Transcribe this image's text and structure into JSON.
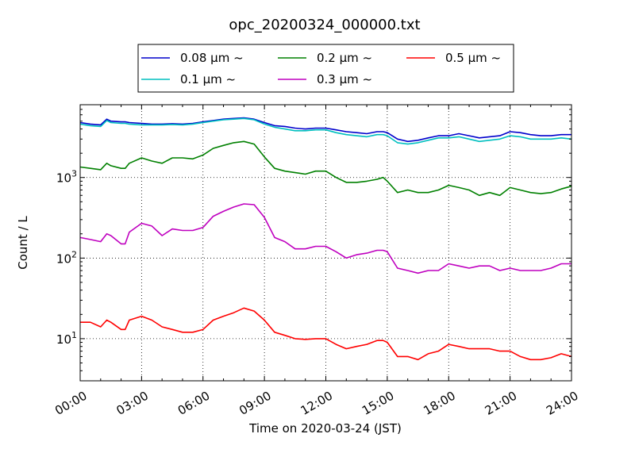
{
  "chart_data": {
    "type": "line",
    "title": "opc_20200324_000000.txt",
    "xlabel": "Time on 2020-03-24 (JST)",
    "ylabel": "Count / L",
    "yscale": "log",
    "xlim": [
      0,
      24
    ],
    "ylim": [
      3,
      8000
    ],
    "grid": true,
    "legend_position": "top-center",
    "x_ticks": [
      "00:00",
      "03:00",
      "06:00",
      "09:00",
      "12:00",
      "15:00",
      "18:00",
      "21:00",
      "24:00"
    ],
    "y_ticks": [
      {
        "value": 10,
        "base": "10",
        "exp": "1"
      },
      {
        "value": 100,
        "base": "10",
        "exp": "2"
      },
      {
        "value": 1000,
        "base": "10",
        "exp": "3"
      }
    ],
    "x_hours": [
      0,
      0.5,
      1,
      1.3,
      1.5,
      2,
      2.2,
      2.4,
      3,
      3.5,
      4,
      4.5,
      5,
      5.5,
      6,
      6.5,
      7,
      7.5,
      8,
      8.5,
      9,
      9.5,
      10,
      10.5,
      11,
      11.5,
      12,
      12.5,
      13,
      13.5,
      14,
      14.5,
      14.8,
      15,
      15.5,
      16,
      16.5,
      17,
      17.5,
      18,
      18.5,
      19,
      19.5,
      20,
      20.5,
      21,
      21.5,
      22,
      22.5,
      23,
      23.5,
      24
    ],
    "series": [
      {
        "name": "0.08 μm ~",
        "color": "#0000cc",
        "values": [
          4800,
          4600,
          4500,
          5300,
          5000,
          4900,
          4900,
          4800,
          4700,
          4600,
          4600,
          4650,
          4600,
          4700,
          4900,
          5100,
          5300,
          5400,
          5500,
          5300,
          4800,
          4400,
          4300,
          4100,
          4000,
          4100,
          4100,
          3900,
          3700,
          3600,
          3500,
          3700,
          3700,
          3600,
          3000,
          2800,
          2900,
          3100,
          3300,
          3300,
          3500,
          3300,
          3100,
          3200,
          3300,
          3700,
          3600,
          3400,
          3300,
          3300,
          3400,
          3400
        ]
      },
      {
        "name": "0.1 μm ~",
        "color": "#00bfbf",
        "values": [
          4600,
          4400,
          4300,
          5100,
          4800,
          4700,
          4700,
          4600,
          4500,
          4500,
          4500,
          4550,
          4500,
          4600,
          4800,
          5000,
          5200,
          5300,
          5400,
          5200,
          4600,
          4200,
          4000,
          3800,
          3800,
          3900,
          3900,
          3600,
          3400,
          3300,
          3200,
          3400,
          3400,
          3300,
          2700,
          2600,
          2700,
          2900,
          3100,
          3100,
          3200,
          3000,
          2800,
          2900,
          3000,
          3300,
          3200,
          3000,
          3000,
          3000,
          3100,
          3000
        ]
      },
      {
        "name": "0.2 μm ~",
        "color": "#008000",
        "values": [
          1350,
          1300,
          1250,
          1500,
          1400,
          1300,
          1300,
          1500,
          1750,
          1600,
          1500,
          1750,
          1750,
          1700,
          1900,
          2300,
          2500,
          2700,
          2800,
          2600,
          1800,
          1300,
          1200,
          1150,
          1100,
          1200,
          1200,
          1000,
          870,
          870,
          900,
          950,
          1000,
          900,
          650,
          700,
          650,
          650,
          700,
          800,
          750,
          700,
          600,
          650,
          600,
          750,
          700,
          650,
          630,
          650,
          720,
          780
        ]
      },
      {
        "name": "0.3 μm ~",
        "color": "#bf00bf",
        "values": [
          180,
          170,
          160,
          200,
          190,
          150,
          150,
          210,
          270,
          250,
          190,
          230,
          220,
          220,
          240,
          330,
          380,
          430,
          470,
          460,
          320,
          180,
          160,
          130,
          130,
          140,
          140,
          120,
          100,
          110,
          115,
          125,
          125,
          120,
          75,
          70,
          65,
          70,
          70,
          85,
          80,
          75,
          80,
          80,
          70,
          75,
          70,
          70,
          70,
          75,
          85,
          85
        ]
      },
      {
        "name": "0.5 μm ~",
        "color": "#ff0000",
        "values": [
          16,
          16,
          14,
          17,
          16,
          13,
          13,
          17,
          19,
          17,
          14,
          13,
          12,
          12,
          13,
          17,
          19,
          21,
          24,
          22,
          17,
          12,
          11,
          10,
          9.8,
          10,
          10,
          8.5,
          7.5,
          8,
          8.5,
          9.5,
          9.5,
          9,
          6,
          6,
          5.5,
          6.5,
          7,
          8.5,
          8,
          7.5,
          7.5,
          7.5,
          7,
          7,
          6,
          5.5,
          5.5,
          5.8,
          6.5,
          6
        ]
      }
    ]
  }
}
